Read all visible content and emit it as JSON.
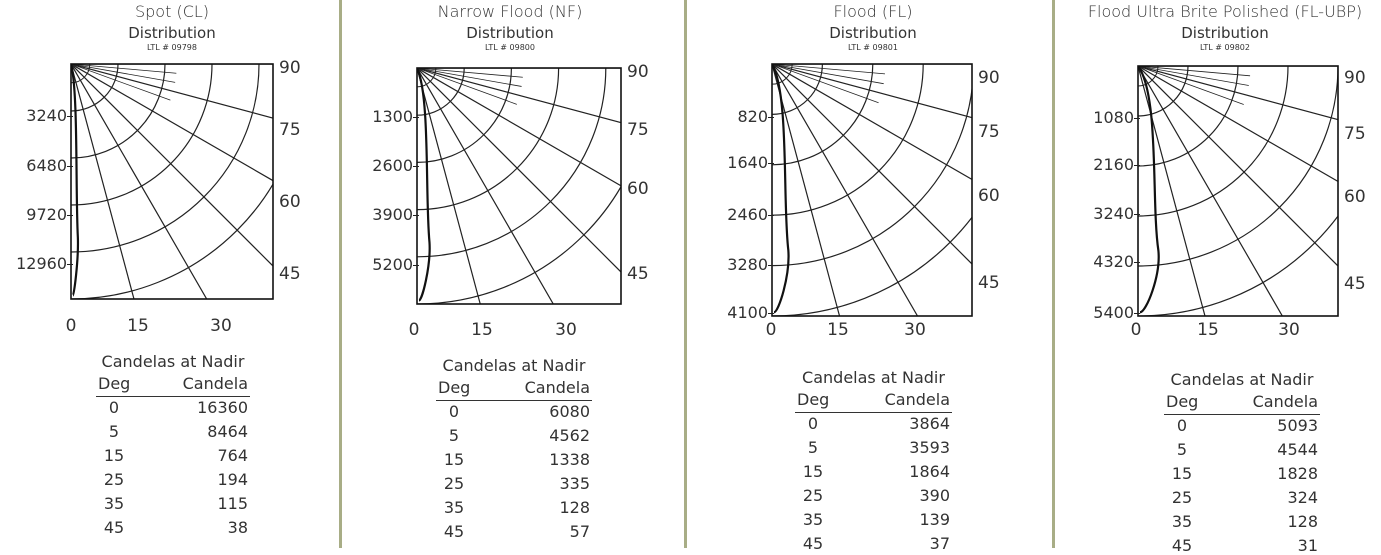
{
  "panels": [
    {
      "title": "Spot (CL)",
      "subtitle": "Distribution",
      "ltl": "LTL # 09798",
      "left_labels": [
        "3240",
        "6480",
        "9720",
        "12960"
      ],
      "right_labels": [
        "90",
        "75",
        "60",
        "45"
      ],
      "bottom_labels": [
        "0",
        "15",
        "30"
      ],
      "table": {
        "title": "Candelas at Nadir",
        "col_deg": "Deg",
        "col_candela": "Candela",
        "rows": [
          {
            "deg": "0",
            "candela": "16360"
          },
          {
            "deg": "5",
            "candela": "8464"
          },
          {
            "deg": "15",
            "candela": "764"
          },
          {
            "deg": "25",
            "candela": "194"
          },
          {
            "deg": "35",
            "candela": "115"
          },
          {
            "deg": "45",
            "candela": "38"
          }
        ]
      }
    },
    {
      "title": "Narrow Flood (NF)",
      "subtitle": "Distribution",
      "ltl": "LTL # 09800",
      "left_labels": [
        "1300",
        "2600",
        "3900",
        "5200"
      ],
      "right_labels": [
        "90",
        "75",
        "60",
        "45"
      ],
      "bottom_labels": [
        "0",
        "15",
        "30"
      ],
      "table": {
        "title": "Candelas at Nadir",
        "col_deg": "Deg",
        "col_candela": "Candela",
        "rows": [
          {
            "deg": "0",
            "candela": "6080"
          },
          {
            "deg": "5",
            "candela": "4562"
          },
          {
            "deg": "15",
            "candela": "1338"
          },
          {
            "deg": "25",
            "candela": "335"
          },
          {
            "deg": "35",
            "candela": "128"
          },
          {
            "deg": "45",
            "candela": "57"
          }
        ]
      }
    },
    {
      "title": "Flood (FL)",
      "subtitle": "Distribution",
      "ltl": "LTL # 09801",
      "left_labels": [
        "820",
        "1640",
        "2460",
        "3280",
        "4100"
      ],
      "right_labels": [
        "90",
        "75",
        "60",
        "45"
      ],
      "bottom_labels": [
        "0",
        "15",
        "30"
      ],
      "table": {
        "title": "Candelas at Nadir",
        "col_deg": "Deg",
        "col_candela": "Candela",
        "rows": [
          {
            "deg": "0",
            "candela": "3864"
          },
          {
            "deg": "5",
            "candela": "3593"
          },
          {
            "deg": "15",
            "candela": "1864"
          },
          {
            "deg": "25",
            "candela": "390"
          },
          {
            "deg": "35",
            "candela": "139"
          },
          {
            "deg": "45",
            "candela": "37"
          }
        ]
      }
    },
    {
      "title": "Flood Ultra Brite Polished (FL-UBP)",
      "subtitle": "Distribution",
      "ltl": "LTL # 09802",
      "left_labels": [
        "1080",
        "2160",
        "3240",
        "4320",
        "5400"
      ],
      "right_labels": [
        "90",
        "75",
        "60",
        "45"
      ],
      "bottom_labels": [
        "0",
        "15",
        "30"
      ],
      "table": {
        "title": "Candelas at Nadir",
        "col_deg": "Deg",
        "col_candela": "Candela",
        "rows": [
          {
            "deg": "0",
            "candela": "5093"
          },
          {
            "deg": "5",
            "candela": "4544"
          },
          {
            "deg": "15",
            "candela": "1828"
          },
          {
            "deg": "25",
            "candela": "324"
          },
          {
            "deg": "35",
            "candela": "128"
          },
          {
            "deg": "45",
            "candela": "31"
          }
        ]
      }
    }
  ]
}
